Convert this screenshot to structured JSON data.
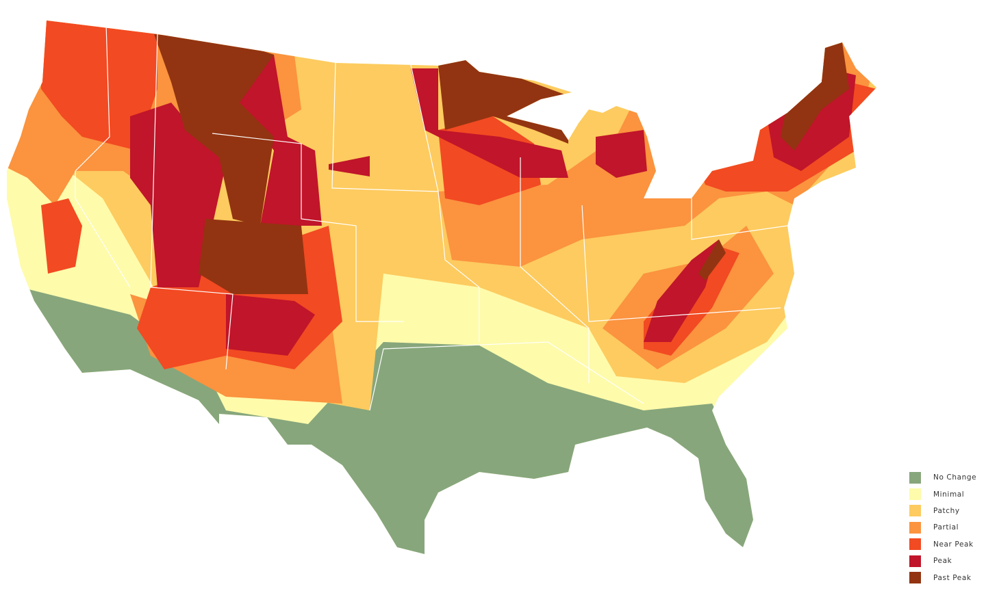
{
  "legend": {
    "items": [
      {
        "label": "No Change",
        "color": "#87a67c"
      },
      {
        "label": "Minimal",
        "color": "#fefbab"
      },
      {
        "label": "Patchy",
        "color": "#fdcb5f"
      },
      {
        "label": "Partial",
        "color": "#fb933f"
      },
      {
        "label": "Near Peak",
        "color": "#f24a22"
      },
      {
        "label": "Peak",
        "color": "#c0152a"
      },
      {
        "label": "Past Peak",
        "color": "#923411"
      }
    ]
  }
}
